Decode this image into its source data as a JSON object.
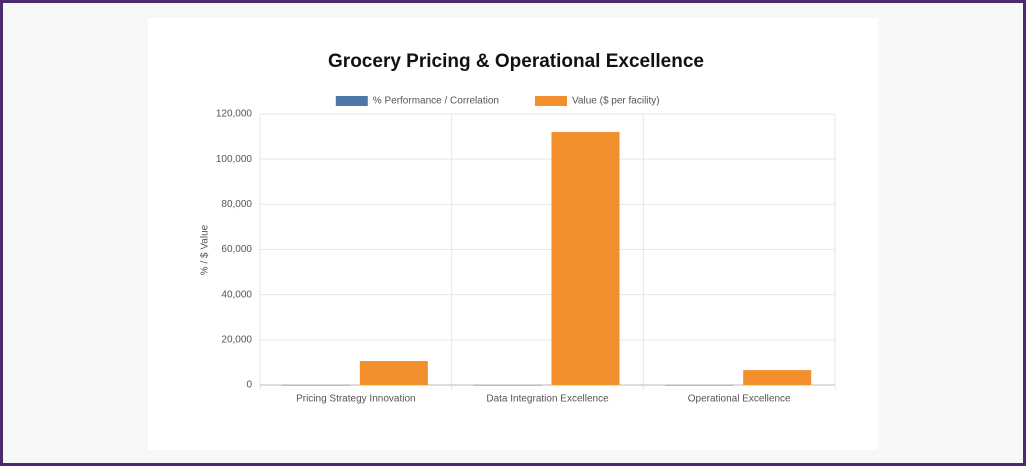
{
  "chart_data": {
    "type": "bar",
    "title": "Grocery Pricing & Operational Excellence",
    "y_label": "% / $ Value",
    "categories": [
      "Pricing Strategy Innovation",
      "Data Integration Excellence",
      "Operational Excellence"
    ],
    "series": [
      {
        "name": "% Performance / Correlation",
        "color": "#4e79a7",
        "values": [
          15,
          25,
          10
        ]
      },
      {
        "name": "Value ($ per facility)",
        "color": "#f28e2b",
        "values": [
          10600,
          112000,
          6600
        ]
      }
    ],
    "ylim": [
      0,
      120000
    ],
    "yticks": [
      0,
      {
        "value": 20000,
        "label": "20,000"
      },
      {
        "value": 40000,
        "label": "40,000"
      },
      {
        "value": 60000,
        "label": "60,000"
      },
      {
        "value": 80000,
        "label": "80,000"
      },
      {
        "value": 100000,
        "label": "100,000"
      },
      {
        "value": 120000,
        "label": "120,000"
      }
    ],
    "grid": true,
    "legend": "top"
  }
}
